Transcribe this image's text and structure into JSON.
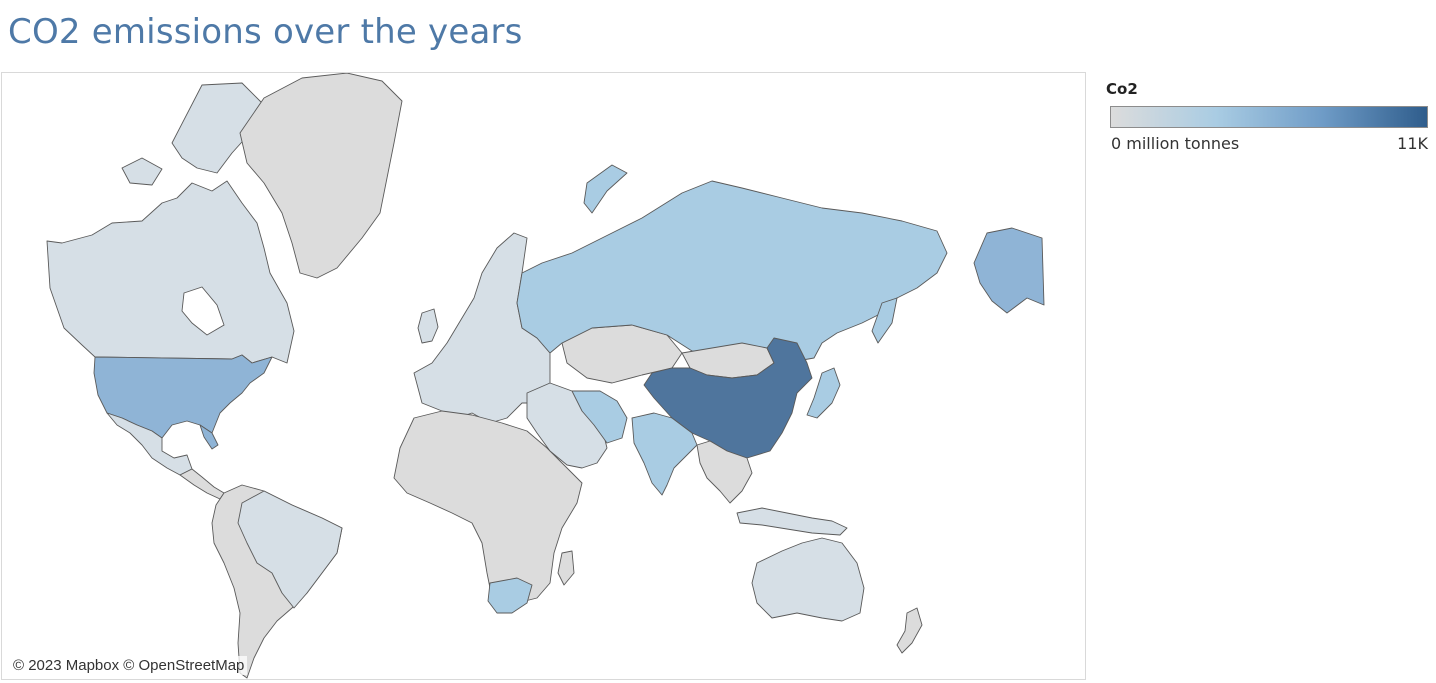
{
  "header": {
    "title": "CO2 emissions over the years"
  },
  "map": {
    "attribution": "© 2023 Mapbox © OpenStreetMap",
    "colors": {
      "no_data": "#dcdcdc",
      "low": "#d6dfe6",
      "mid_low": "#a9cce3",
      "mid": "#8fb4d6",
      "high": "#4f759d",
      "border": "#5a5a5a"
    },
    "countries": [
      {
        "name": "Canada",
        "level": "low"
      },
      {
        "name": "Alaska",
        "level": "mid"
      },
      {
        "name": "United States",
        "level": "mid"
      },
      {
        "name": "Mexico",
        "level": "low"
      },
      {
        "name": "Greenland",
        "level": "no_data"
      },
      {
        "name": "Brazil",
        "level": "low"
      },
      {
        "name": "South America",
        "level": "no_data"
      },
      {
        "name": "Europe",
        "level": "low"
      },
      {
        "name": "Africa",
        "level": "no_data"
      },
      {
        "name": "South Africa",
        "level": "mid_low"
      },
      {
        "name": "Russia",
        "level": "mid_low"
      },
      {
        "name": "Kazakhstan",
        "level": "no_data"
      },
      {
        "name": "Middle East",
        "level": "low"
      },
      {
        "name": "Iran",
        "level": "mid_low"
      },
      {
        "name": "India",
        "level": "mid_low"
      },
      {
        "name": "China",
        "level": "high"
      },
      {
        "name": "Mongolia",
        "level": "no_data"
      },
      {
        "name": "Japan",
        "level": "mid_low"
      },
      {
        "name": "Southeast Asia",
        "level": "no_data"
      },
      {
        "name": "Indonesia",
        "level": "low"
      },
      {
        "name": "Australia",
        "level": "low"
      },
      {
        "name": "New Zealand",
        "level": "no_data"
      }
    ]
  },
  "legend": {
    "title": "Co2",
    "min_label": "0 million tonnes",
    "max_label": "11K",
    "ramp_colors": [
      "#dcdcdc",
      "#a9cce3",
      "#6f9cc7",
      "#2f5d8c"
    ]
  }
}
